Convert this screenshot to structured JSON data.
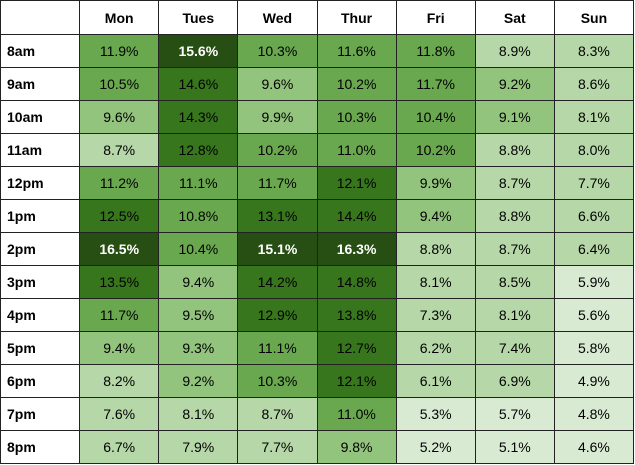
{
  "chart_data": {
    "type": "heatmap",
    "columns": [
      "Mon",
      "Tues",
      "Wed",
      "Thur",
      "Fri",
      "Sat",
      "Sun"
    ],
    "rows": [
      "8am",
      "9am",
      "10am",
      "11am",
      "12pm",
      "1pm",
      "2pm",
      "3pm",
      "4pm",
      "5pm",
      "6pm",
      "7pm",
      "8pm"
    ],
    "values": [
      [
        11.9,
        15.6,
        10.3,
        11.6,
        11.8,
        8.9,
        8.3
      ],
      [
        10.5,
        14.6,
        9.6,
        10.2,
        11.7,
        9.2,
        8.6
      ],
      [
        9.6,
        14.3,
        9.9,
        10.3,
        10.4,
        9.1,
        8.1
      ],
      [
        8.7,
        12.8,
        10.2,
        11.0,
        10.2,
        8.8,
        8.0
      ],
      [
        11.2,
        11.1,
        11.7,
        12.1,
        9.9,
        8.7,
        7.7
      ],
      [
        12.5,
        10.8,
        13.1,
        14.4,
        9.4,
        8.8,
        6.6
      ],
      [
        16.5,
        10.4,
        15.1,
        16.3,
        8.8,
        8.7,
        6.4
      ],
      [
        13.5,
        9.4,
        14.2,
        14.8,
        8.1,
        8.5,
        5.9
      ],
      [
        11.7,
        9.5,
        12.9,
        13.8,
        7.3,
        8.1,
        5.6
      ],
      [
        9.4,
        9.3,
        11.1,
        12.7,
        6.2,
        7.4,
        5.8
      ],
      [
        8.2,
        9.2,
        10.3,
        12.1,
        6.1,
        6.9,
        4.9
      ],
      [
        7.6,
        8.1,
        8.7,
        11.0,
        5.3,
        5.7,
        4.8
      ],
      [
        6.7,
        7.9,
        7.7,
        9.8,
        5.2,
        5.1,
        4.6
      ]
    ],
    "value_suffix": "%",
    "highlighted_cells": [
      [
        0,
        1
      ],
      [
        6,
        0
      ],
      [
        6,
        2
      ],
      [
        6,
        3
      ]
    ],
    "color_scale": [
      "#d9ead3",
      "#b6d7a8",
      "#93c47d",
      "#6aa84f",
      "#38761d",
      "#274e13"
    ],
    "color_thresholds": [
      6.0,
      9.0,
      10.0,
      12.0,
      15.0
    ]
  }
}
